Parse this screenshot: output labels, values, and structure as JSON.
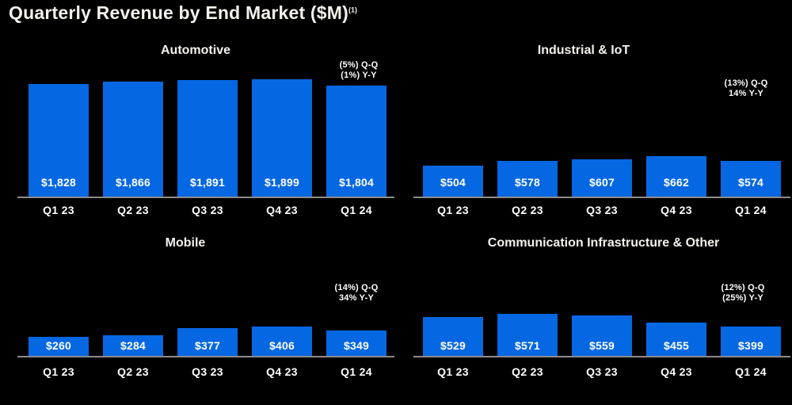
{
  "page": {
    "title": "Quarterly Revenue by End Market ($M)",
    "footnote_marker": "(1)",
    "colors": {
      "background": "#000000",
      "bar": "#0667E2",
      "axis_line": "#8C8C8C",
      "title_text": "#F5F2EC",
      "label_text": "#FFFFFF"
    }
  },
  "chart_data": [
    {
      "type": "bar",
      "title": "Automotive",
      "categories": [
        "Q1 23",
        "Q2 23",
        "Q3 23",
        "Q4 23",
        "Q1 24"
      ],
      "values": [
        1828,
        1866,
        1891,
        1899,
        1804
      ],
      "value_labels": [
        "$1,828",
        "$1,866",
        "$1,891",
        "$1,899",
        "$1,804"
      ],
      "annotation_lines": [
        "(5%) Q-Q",
        "(1%) Y-Y"
      ],
      "xlabel": "",
      "ylabel": "",
      "ylim": [
        0,
        2574
      ],
      "grid": false,
      "legend": false,
      "value_label_position": "inside-bottom"
    },
    {
      "type": "bar",
      "title": "Industrial & IoT",
      "categories": [
        "Q1 23",
        "Q2 23",
        "Q3 23",
        "Q4 23",
        "Q1 24"
      ],
      "values": [
        504,
        578,
        607,
        662,
        574
      ],
      "value_labels": [
        "$504",
        "$578",
        "$607",
        "$662",
        "$574"
      ],
      "annotation_lines": [
        "(13%) Q-Q",
        "14% Y-Y"
      ],
      "xlabel": "",
      "ylabel": "",
      "ylim": [
        0,
        2574
      ],
      "grid": false,
      "legend": false,
      "value_label_position": "inside-bottom"
    },
    {
      "type": "bar",
      "title": "Mobile",
      "categories": [
        "Q1 23",
        "Q2 23",
        "Q3 23",
        "Q4 23",
        "Q1 24"
      ],
      "values": [
        260,
        284,
        377,
        406,
        349
      ],
      "value_labels": [
        "$260",
        "$284",
        "$377",
        "$406",
        "$349"
      ],
      "annotation_lines": [
        "(14%) Q-Q",
        "34% Y-Y"
      ],
      "xlabel": "",
      "ylabel": "",
      "ylim": [
        0,
        1728
      ],
      "grid": false,
      "legend": false,
      "value_label_position": "inside-bottom"
    },
    {
      "type": "bar",
      "title": "Communication Infrastructure & Other",
      "categories": [
        "Q1 23",
        "Q2 23",
        "Q3 23",
        "Q4 23",
        "Q1 24"
      ],
      "values": [
        529,
        571,
        559,
        455,
        399
      ],
      "value_labels": [
        "$529",
        "$571",
        "$559",
        "$455",
        "$399"
      ],
      "annotation_lines": [
        "(12%) Q-Q",
        "(25%) Y-Y"
      ],
      "xlabel": "",
      "ylabel": "",
      "ylim": [
        0,
        1728
      ],
      "grid": false,
      "legend": false,
      "value_label_position": "inside-bottom"
    }
  ]
}
